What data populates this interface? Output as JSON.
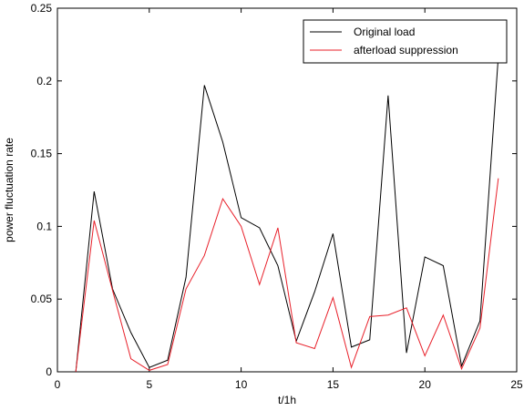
{
  "chart_data": {
    "type": "line",
    "title": "",
    "xlabel": "t/1h",
    "ylabel": "power fluctuation rate",
    "xlim": [
      0,
      25
    ],
    "ylim": [
      0,
      0.25
    ],
    "xticks": [
      0,
      5,
      10,
      15,
      20,
      25
    ],
    "yticks": [
      0,
      0.05,
      0.1,
      0.15,
      0.2,
      0.25
    ],
    "xtick_labels": [
      "0",
      "5",
      "10",
      "15",
      "20",
      "25"
    ],
    "ytick_labels": [
      "0",
      "0.05",
      "0.1",
      "0.15",
      "0.2",
      "0.25"
    ],
    "grid": false,
    "legend_position": "top-right",
    "x": [
      1,
      2,
      3,
      4,
      5,
      6,
      7,
      8,
      9,
      10,
      11,
      12,
      13,
      14,
      15,
      16,
      17,
      18,
      19,
      20,
      21,
      22,
      23,
      24
    ],
    "series": [
      {
        "name": "Original load",
        "color": "#000000",
        "values": [
          0.0,
          0.124,
          0.057,
          0.027,
          0.003,
          0.008,
          0.065,
          0.197,
          0.158,
          0.106,
          0.099,
          0.073,
          0.021,
          0.055,
          0.095,
          0.017,
          0.022,
          0.19,
          0.013,
          0.079,
          0.073,
          0.004,
          0.035,
          0.217
        ]
      },
      {
        "name": "afterload suppression",
        "color": "#e8202a",
        "values": [
          0.0,
          0.104,
          0.056,
          0.009,
          0.001,
          0.005,
          0.057,
          0.08,
          0.119,
          0.1,
          0.06,
          0.099,
          0.02,
          0.016,
          0.051,
          0.003,
          0.038,
          0.039,
          0.044,
          0.011,
          0.039,
          0.002,
          0.03,
          0.133
        ]
      }
    ]
  }
}
